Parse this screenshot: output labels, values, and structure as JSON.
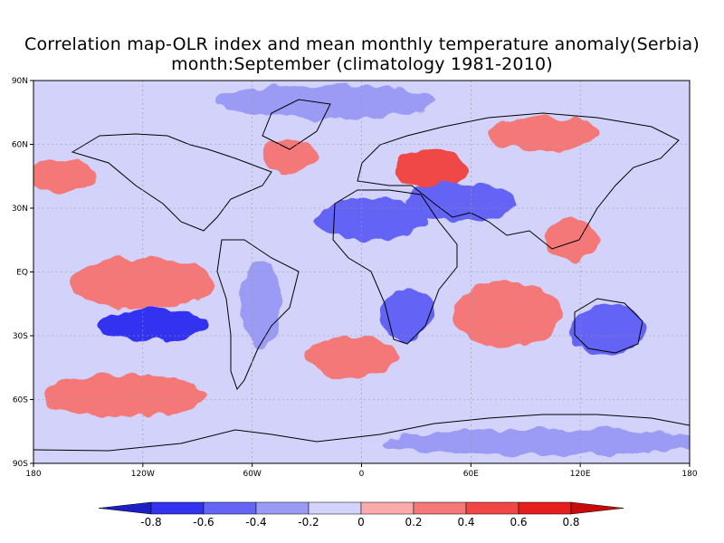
{
  "title": {
    "line1": "Correlation map-OLR index and mean monthly temperature anomaly(Serbia)",
    "line2": "month:September (climatology 1981-2010)"
  },
  "axes": {
    "lat_labels": [
      "90N",
      "60N",
      "30N",
      "EQ",
      "30S",
      "60S",
      "90S"
    ],
    "lat_values": [
      90,
      60,
      30,
      0,
      -30,
      -60,
      -90
    ],
    "lon_labels": [
      "180",
      "120W",
      "60W",
      "0",
      "60E",
      "120E",
      "180"
    ],
    "lon_values": [
      -180,
      -120,
      -60,
      0,
      60,
      120,
      180
    ]
  },
  "colorbar": {
    "labels": [
      "-0.8",
      "-0.6",
      "-0.4",
      "-0.2",
      "0",
      "0.2",
      "0.4",
      "0.6",
      "0.8"
    ],
    "colors": [
      "#1e1ec8",
      "#3232f0",
      "#6464f5",
      "#9b9bf5",
      "#d2d2fa",
      "#faaaaa",
      "#f57878",
      "#f04646",
      "#e61e1e",
      "#c80a0a"
    ]
  },
  "map_data": {
    "background_color": "#d2d2fa",
    "features": [
      {
        "name": "negative-arctic",
        "value": -0.3,
        "lon": -20,
        "lat": 80,
        "rx": 60,
        "ry": 8
      },
      {
        "name": "positive-northeast-europe",
        "value": 0.5,
        "lon": 38,
        "lat": 48,
        "rx": 20,
        "ry": 9
      },
      {
        "name": "negative-central-asia",
        "value": -0.5,
        "lon": 55,
        "lat": 33,
        "rx": 30,
        "ry": 9
      },
      {
        "name": "negative-sahara",
        "value": -0.5,
        "lon": 5,
        "lat": 25,
        "rx": 30,
        "ry": 10
      },
      {
        "name": "negative-southeast-pacific",
        "value": -0.6,
        "lon": -115,
        "lat": -25,
        "rx": 30,
        "ry": 8
      },
      {
        "name": "positive-tropical-pacific",
        "value": 0.4,
        "lon": -120,
        "lat": -5,
        "rx": 40,
        "ry": 12
      },
      {
        "name": "positive-south-pacific",
        "value": 0.4,
        "lon": -130,
        "lat": -58,
        "rx": 45,
        "ry": 10
      },
      {
        "name": "negative-south-africa",
        "value": -0.4,
        "lon": 25,
        "lat": -20,
        "rx": 15,
        "ry": 12
      },
      {
        "name": "negative-australia",
        "value": -0.4,
        "lon": 135,
        "lat": -27,
        "rx": 20,
        "ry": 12
      },
      {
        "name": "positive-indian-ocean",
        "value": 0.3,
        "lon": 80,
        "lat": -20,
        "rx": 30,
        "ry": 15
      },
      {
        "name": "positive-south-atlantic",
        "value": 0.3,
        "lon": -5,
        "lat": -40,
        "rx": 25,
        "ry": 10
      },
      {
        "name": "positive-north-pacific",
        "value": 0.3,
        "lon": -165,
        "lat": 45,
        "rx": 20,
        "ry": 8
      },
      {
        "name": "positive-north-atlantic",
        "value": 0.3,
        "lon": -40,
        "lat": 55,
        "rx": 15,
        "ry": 8
      },
      {
        "name": "positive-siberia",
        "value": 0.3,
        "lon": 100,
        "lat": 65,
        "rx": 30,
        "ry": 8
      },
      {
        "name": "positive-southeast-asia",
        "value": 0.3,
        "lon": 115,
        "lat": 15,
        "rx": 15,
        "ry": 10
      },
      {
        "name": "negative-south-america",
        "value": -0.3,
        "lon": -55,
        "lat": -15,
        "rx": 12,
        "ry": 20
      },
      {
        "name": "negative-antarctic",
        "value": -0.3,
        "lon": 100,
        "lat": -80,
        "rx": 90,
        "ry": 6
      }
    ]
  }
}
